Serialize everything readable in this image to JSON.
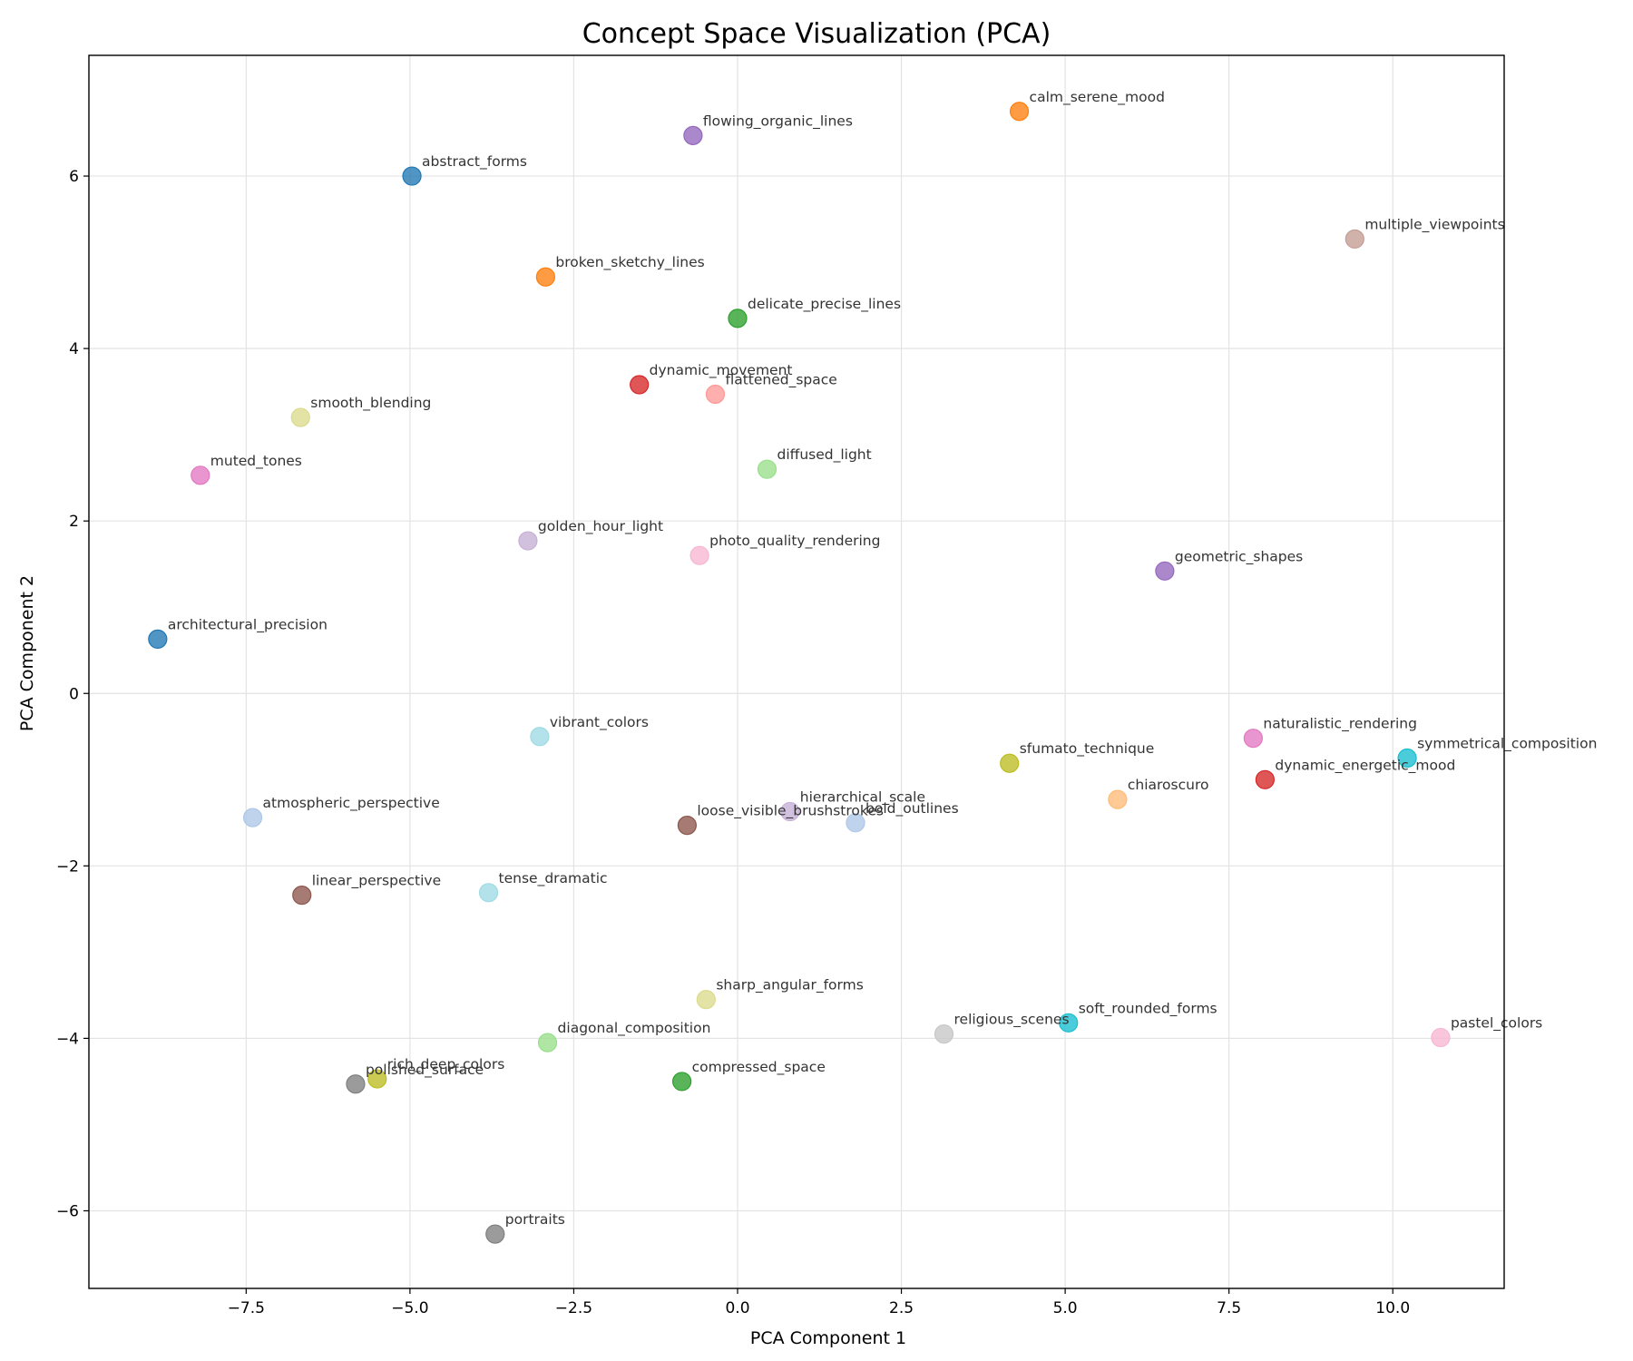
{
  "chart_data": {
    "type": "scatter",
    "title": "Concept Space Visualization (PCA)",
    "xlabel": "PCA Component 1",
    "ylabel": "PCA Component 2",
    "xlim": [
      -9.9,
      11.7
    ],
    "ylim": [
      -6.9,
      7.4
    ],
    "xticks": [
      -7.5,
      -5.0,
      -2.5,
      0.0,
      2.5,
      5.0,
      7.5,
      10.0
    ],
    "xtick_labels": [
      "−7.5",
      "−5.0",
      "−2.5",
      "0.0",
      "2.5",
      "5.0",
      "7.5",
      "10.0"
    ],
    "yticks": [
      -6,
      -4,
      -2,
      0,
      2,
      4,
      6
    ],
    "ytick_labels": [
      "−6",
      "−4",
      "−2",
      "0",
      "2",
      "4",
      "6"
    ],
    "grid": true,
    "points": [
      {
        "label": "calm_serene_mood",
        "x": 4.3,
        "y": 6.75,
        "color": "#ff7f0e"
      },
      {
        "label": "flowing_organic_lines",
        "x": -0.68,
        "y": 6.47,
        "color": "#9467bd"
      },
      {
        "label": "abstract_forms",
        "x": -4.97,
        "y": 6.0,
        "color": "#1f77b4"
      },
      {
        "label": "multiple_viewpoints",
        "x": 9.42,
        "y": 5.27,
        "color": "#c49c94"
      },
      {
        "label": "broken_sketchy_lines",
        "x": -2.93,
        "y": 4.83,
        "color": "#ff7f0e"
      },
      {
        "label": "delicate_precise_lines",
        "x": 0.0,
        "y": 4.35,
        "color": "#2ca02c"
      },
      {
        "label": "dynamic_movement",
        "x": -1.5,
        "y": 3.58,
        "color": "#d62728"
      },
      {
        "label": "flattened_space",
        "x": -0.34,
        "y": 3.47,
        "color": "#ff9896"
      },
      {
        "label": "smooth_blending",
        "x": -6.67,
        "y": 3.2,
        "color": "#dbdb8d"
      },
      {
        "label": "muted_tones",
        "x": -8.2,
        "y": 2.53,
        "color": "#e377c2"
      },
      {
        "label": "diffused_light",
        "x": 0.45,
        "y": 2.6,
        "color": "#98df8a"
      },
      {
        "label": "golden_hour_light",
        "x": -3.2,
        "y": 1.77,
        "color": "#c5b0d5"
      },
      {
        "label": "photo_quality_rendering",
        "x": -0.58,
        "y": 1.6,
        "color": "#f7b6d2"
      },
      {
        "label": "geometric_shapes",
        "x": 6.52,
        "y": 1.42,
        "color": "#9467bd"
      },
      {
        "label": "architectural_precision",
        "x": -8.85,
        "y": 0.63,
        "color": "#1f77b4"
      },
      {
        "label": "vibrant_colors",
        "x": -3.02,
        "y": -0.5,
        "color": "#9edae5"
      },
      {
        "label": "naturalistic_rendering",
        "x": 7.87,
        "y": -0.52,
        "color": "#e377c2"
      },
      {
        "label": "symmetrical_composition",
        "x": 10.22,
        "y": -0.75,
        "color": "#17becf"
      },
      {
        "label": "sfumato_technique",
        "x": 4.15,
        "y": -0.81,
        "color": "#bcbd22"
      },
      {
        "label": "dynamic_energetic_mood",
        "x": 8.05,
        "y": -1.0,
        "color": "#d62728"
      },
      {
        "label": "chiaroscuro",
        "x": 5.8,
        "y": -1.23,
        "color": "#ffbb78"
      },
      {
        "label": "hierarchical_scale",
        "x": 0.8,
        "y": -1.37,
        "color": "#c5b0d5"
      },
      {
        "label": "atmospheric_perspective",
        "x": -7.4,
        "y": -1.44,
        "color": "#aec7e8"
      },
      {
        "label": "bold_outlines",
        "x": 1.8,
        "y": -1.5,
        "color": "#aec7e8"
      },
      {
        "label": "loose_visible_brushstrokes",
        "x": -0.77,
        "y": -1.53,
        "color": "#8c564b"
      },
      {
        "label": "linear_perspective",
        "x": -6.65,
        "y": -2.34,
        "color": "#8c564b"
      },
      {
        "label": "tense_dramatic",
        "x": -3.8,
        "y": -2.31,
        "color": "#9edae5"
      },
      {
        "label": "sharp_angular_forms",
        "x": -0.48,
        "y": -3.55,
        "color": "#dbdb8d"
      },
      {
        "label": "soft_rounded_forms",
        "x": 5.05,
        "y": -3.82,
        "color": "#17becf"
      },
      {
        "label": "religious_scenes",
        "x": 3.15,
        "y": -3.95,
        "color": "#c7c7c7"
      },
      {
        "label": "pastel_colors",
        "x": 10.73,
        "y": -3.99,
        "color": "#f7b6d2"
      },
      {
        "label": "diagonal_composition",
        "x": -2.9,
        "y": -4.05,
        "color": "#98df8a"
      },
      {
        "label": "compressed_space",
        "x": -0.85,
        "y": -4.5,
        "color": "#2ca02c"
      },
      {
        "label": "rich_deep_colors",
        "x": -5.5,
        "y": -4.47,
        "color": "#bcbd22"
      },
      {
        "label": "polished_surface",
        "x": -5.83,
        "y": -4.53,
        "color": "#7f7f7f"
      },
      {
        "label": "portraits",
        "x": -3.7,
        "y": -6.27,
        "color": "#7f7f7f"
      }
    ]
  }
}
